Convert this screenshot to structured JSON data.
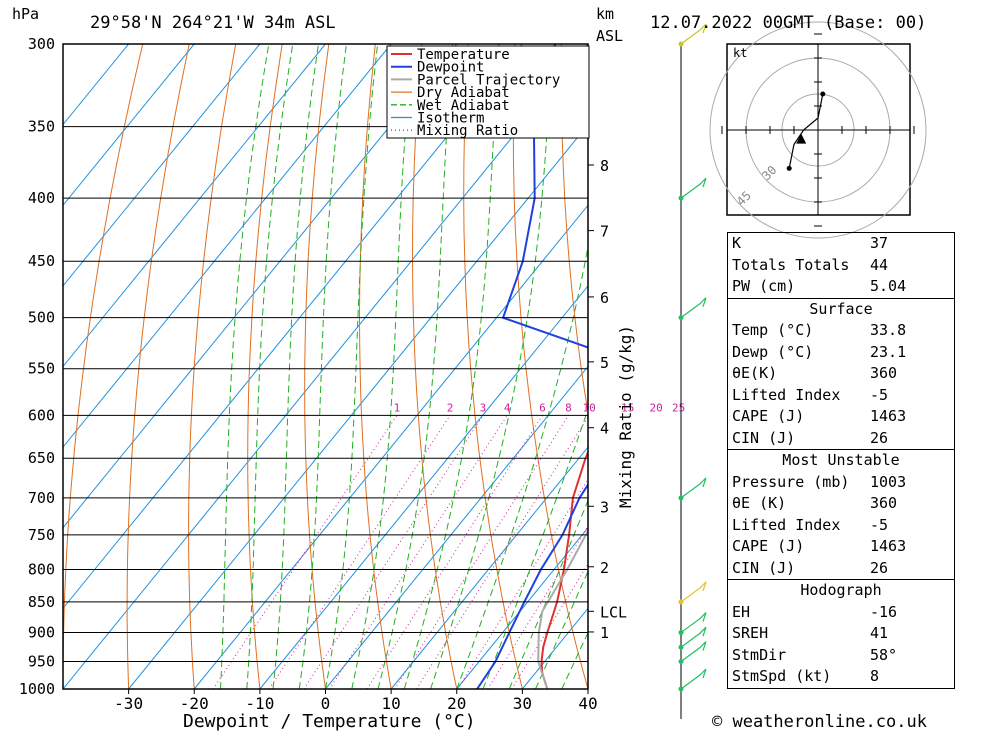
{
  "header": {
    "pressure_unit": "hPa",
    "location": "29°58'N  264°21'W  34m  ASL",
    "height_unit_top": "km",
    "height_unit_bottom": "ASL",
    "datetime": "12.07.2022  00GMT  (Base: 00)"
  },
  "footer": {
    "copyright": "© weatheronline.co.uk"
  },
  "chart_data": {
    "type": "line",
    "title": "29°58'N  264°21'W  34m  ASL",
    "xlabel": "Dewpoint / Temperature (°C)",
    "ylabel": "hPa",
    "y2label": "Mixing Ratio (g/kg)",
    "y_scale": "log",
    "xlim": [
      -40,
      40
    ],
    "ylim": [
      1000,
      300
    ],
    "x_ticks": [
      -30,
      -20,
      -10,
      0,
      10,
      20,
      30,
      40
    ],
    "x_tick_labels": [
      "-30",
      "-20",
      "-10",
      "0",
      "10",
      "20",
      "30",
      "40"
    ],
    "pressure_levels": [
      300,
      350,
      400,
      450,
      500,
      550,
      600,
      650,
      700,
      750,
      800,
      850,
      900,
      950,
      1000
    ],
    "height_ticks_km": [
      {
        "label": "8",
        "p": 376
      },
      {
        "label": "7",
        "p": 425
      },
      {
        "label": "6",
        "p": 481
      },
      {
        "label": "5",
        "p": 543
      },
      {
        "label": "4",
        "p": 614
      },
      {
        "label": "3",
        "p": 711
      },
      {
        "label": "2",
        "p": 796
      },
      {
        "label": "LCL",
        "p": 865
      },
      {
        "label": "1",
        "p": 899
      }
    ],
    "mixing_ratio_labels": [
      "1",
      "2",
      "3",
      "4",
      "6",
      "8",
      "10",
      "15",
      "20",
      "25"
    ],
    "mixing_ratio_values": [
      1,
      2,
      3,
      4,
      6,
      8,
      10,
      15,
      20,
      25
    ],
    "legend": [
      "Temperature",
      "Dewpoint",
      "Parcel Trajectory",
      "Dry Adiabat",
      "Wet Adiabat",
      "Isotherm",
      "Mixing Ratio"
    ],
    "legend_position": "top-right",
    "colors": {
      "temperature": "#e03030",
      "dewpoint": "#2040e0",
      "parcel": "#aaaaaa",
      "dry_adiabat": "#e07020",
      "wet_adiabat": "#20b020",
      "isotherm": "#2090e0",
      "mixing_ratio": "#d020a0"
    },
    "series": [
      {
        "name": "Temperature",
        "points": [
          [
            1000,
            33.8
          ],
          [
            970,
            31
          ],
          [
            950,
            29.5
          ],
          [
            925,
            28
          ],
          [
            900,
            26.8
          ],
          [
            850,
            24.5
          ],
          [
            800,
            21.5
          ],
          [
            750,
            18
          ],
          [
            700,
            14
          ],
          [
            650,
            11
          ],
          [
            600,
            8.5
          ],
          [
            550,
            5.5
          ],
          [
            500,
            2
          ],
          [
            450,
            -4
          ],
          [
            400,
            -11.5
          ],
          [
            350,
            -20
          ],
          [
            300,
            -28
          ]
        ]
      },
      {
        "name": "Dewpoint",
        "points": [
          [
            1000,
            23.1
          ],
          [
            950,
            22.5
          ],
          [
            900,
            21
          ],
          [
            850,
            19.5
          ],
          [
            800,
            18
          ],
          [
            750,
            17
          ],
          [
            700,
            15
          ],
          [
            650,
            14
          ],
          [
            600,
            12
          ],
          [
            550,
            9.5
          ],
          [
            500,
            -19
          ],
          [
            450,
            -23
          ],
          [
            400,
            -29
          ],
          [
            350,
            -38
          ],
          [
            300,
            -45
          ]
        ]
      },
      {
        "name": "Parcel Trajectory",
        "points": [
          [
            1000,
            33.8
          ],
          [
            950,
            29
          ],
          [
            900,
            25.5
          ],
          [
            865,
            23.4
          ],
          [
            800,
            22
          ],
          [
            700,
            19
          ],
          [
            600,
            15
          ],
          [
            550,
            13
          ],
          [
            500,
            9.5
          ],
          [
            450,
            5
          ],
          [
            400,
            -1
          ],
          [
            350,
            -9
          ],
          [
            300,
            -18
          ]
        ]
      }
    ]
  },
  "wind_barbs": [
    {
      "p": 300,
      "color": "#c8c820"
    },
    {
      "p": 400,
      "color": "#20c060"
    },
    {
      "p": 500,
      "color": "#20c060"
    },
    {
      "p": 700,
      "color": "#20c060"
    },
    {
      "p": 850,
      "color": "#e8c020"
    },
    {
      "p": 900,
      "color": "#20c060"
    },
    {
      "p": 925,
      "color": "#20c060"
    },
    {
      "p": 950,
      "color": "#20c060"
    },
    {
      "p": 1000,
      "color": "#20c060"
    }
  ],
  "hodograph": {
    "unit": "kt",
    "ring_labels": [
      "30",
      "45"
    ],
    "points_kt": [
      [
        2,
        15
      ],
      [
        0,
        5
      ],
      [
        -6,
        0
      ],
      [
        -10,
        -6
      ],
      [
        -12,
        -16
      ]
    ],
    "storm_motion_kt": [
      -7,
      -4
    ]
  },
  "indices": {
    "general": [
      {
        "label": "K",
        "value": "37"
      },
      {
        "label": "Totals Totals",
        "value": "44"
      },
      {
        "label": "PW (cm)",
        "value": "5.04"
      }
    ],
    "surface_title": "Surface",
    "surface": [
      {
        "label": "Temp (°C)",
        "value": "33.8"
      },
      {
        "label": "Dewp (°C)",
        "value": "23.1"
      },
      {
        "label": "θE(K)",
        "value": "360"
      },
      {
        "label": "Lifted Index",
        "value": "-5"
      },
      {
        "label": "CAPE (J)",
        "value": "1463"
      },
      {
        "label": "CIN (J)",
        "value": "26"
      }
    ],
    "unstable_title": "Most Unstable",
    "unstable": [
      {
        "label": "Pressure (mb)",
        "value": "1003"
      },
      {
        "label": "θE (K)",
        "value": "360"
      },
      {
        "label": "Lifted Index",
        "value": "-5"
      },
      {
        "label": "CAPE (J)",
        "value": "1463"
      },
      {
        "label": "CIN (J)",
        "value": "26"
      }
    ],
    "hodo_title": "Hodograph",
    "hodo": [
      {
        "label": "EH",
        "value": "-16"
      },
      {
        "label": "SREH",
        "value": "41"
      },
      {
        "label": "StmDir",
        "value": "58°"
      },
      {
        "label": "StmSpd (kt)",
        "value": "8"
      }
    ]
  }
}
